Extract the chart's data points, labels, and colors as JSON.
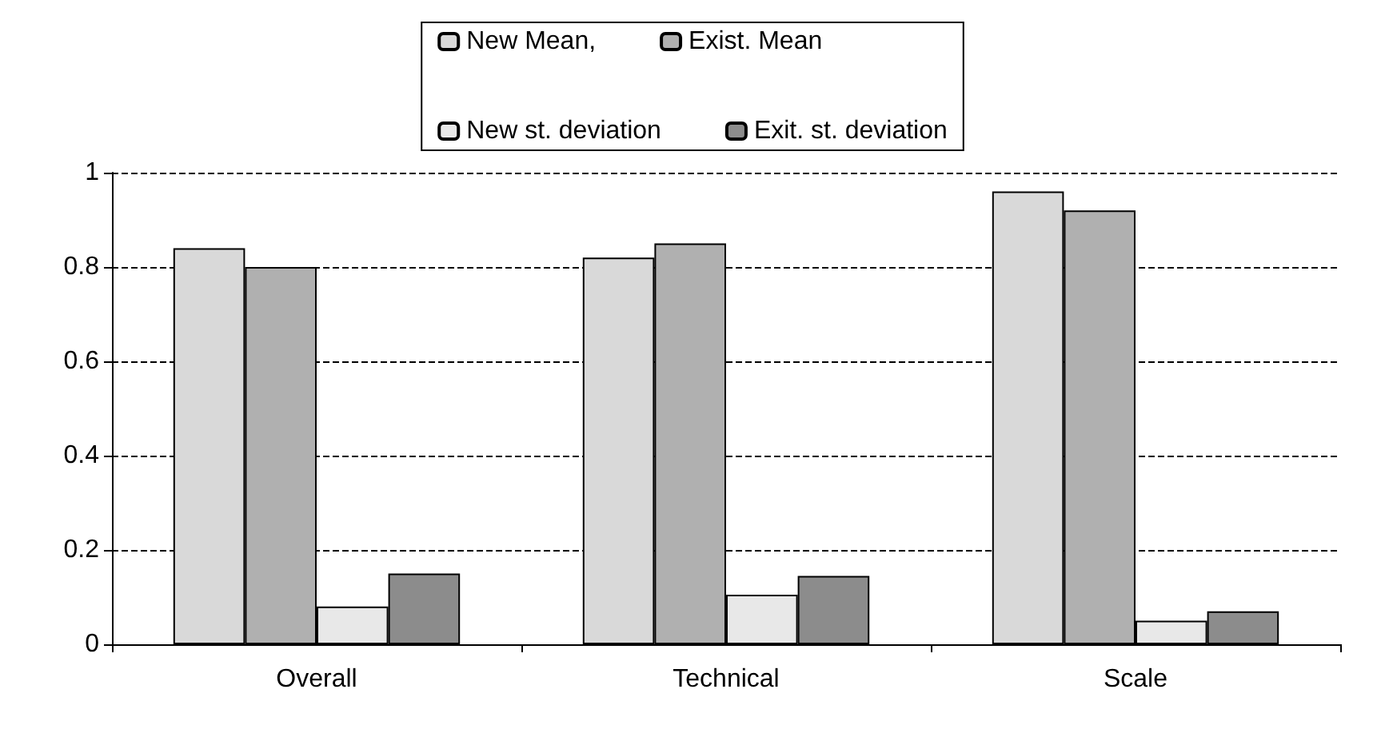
{
  "chart_data": {
    "type": "bar",
    "categories": [
      "Overall",
      "Technical",
      "Scale"
    ],
    "series": [
      {
        "name": "New Mean,",
        "color": "#d9d9d9",
        "values": [
          0.84,
          0.82,
          0.96
        ]
      },
      {
        "name": "Exist. Mean",
        "color": "#b0b0b0",
        "values": [
          0.8,
          0.85,
          0.92
        ]
      },
      {
        "name": "New st. deviation",
        "color": "#e8e8e8",
        "values": [
          0.08,
          0.105,
          0.05
        ]
      },
      {
        "name": "Exit. st. deviation",
        "color": "#8c8c8c",
        "values": [
          0.15,
          0.145,
          0.07
        ]
      }
    ],
    "ylim": [
      0,
      1
    ],
    "yticks": [
      0,
      0.2,
      0.4,
      0.6,
      0.8,
      1
    ],
    "grid": "y",
    "legend": "top"
  }
}
